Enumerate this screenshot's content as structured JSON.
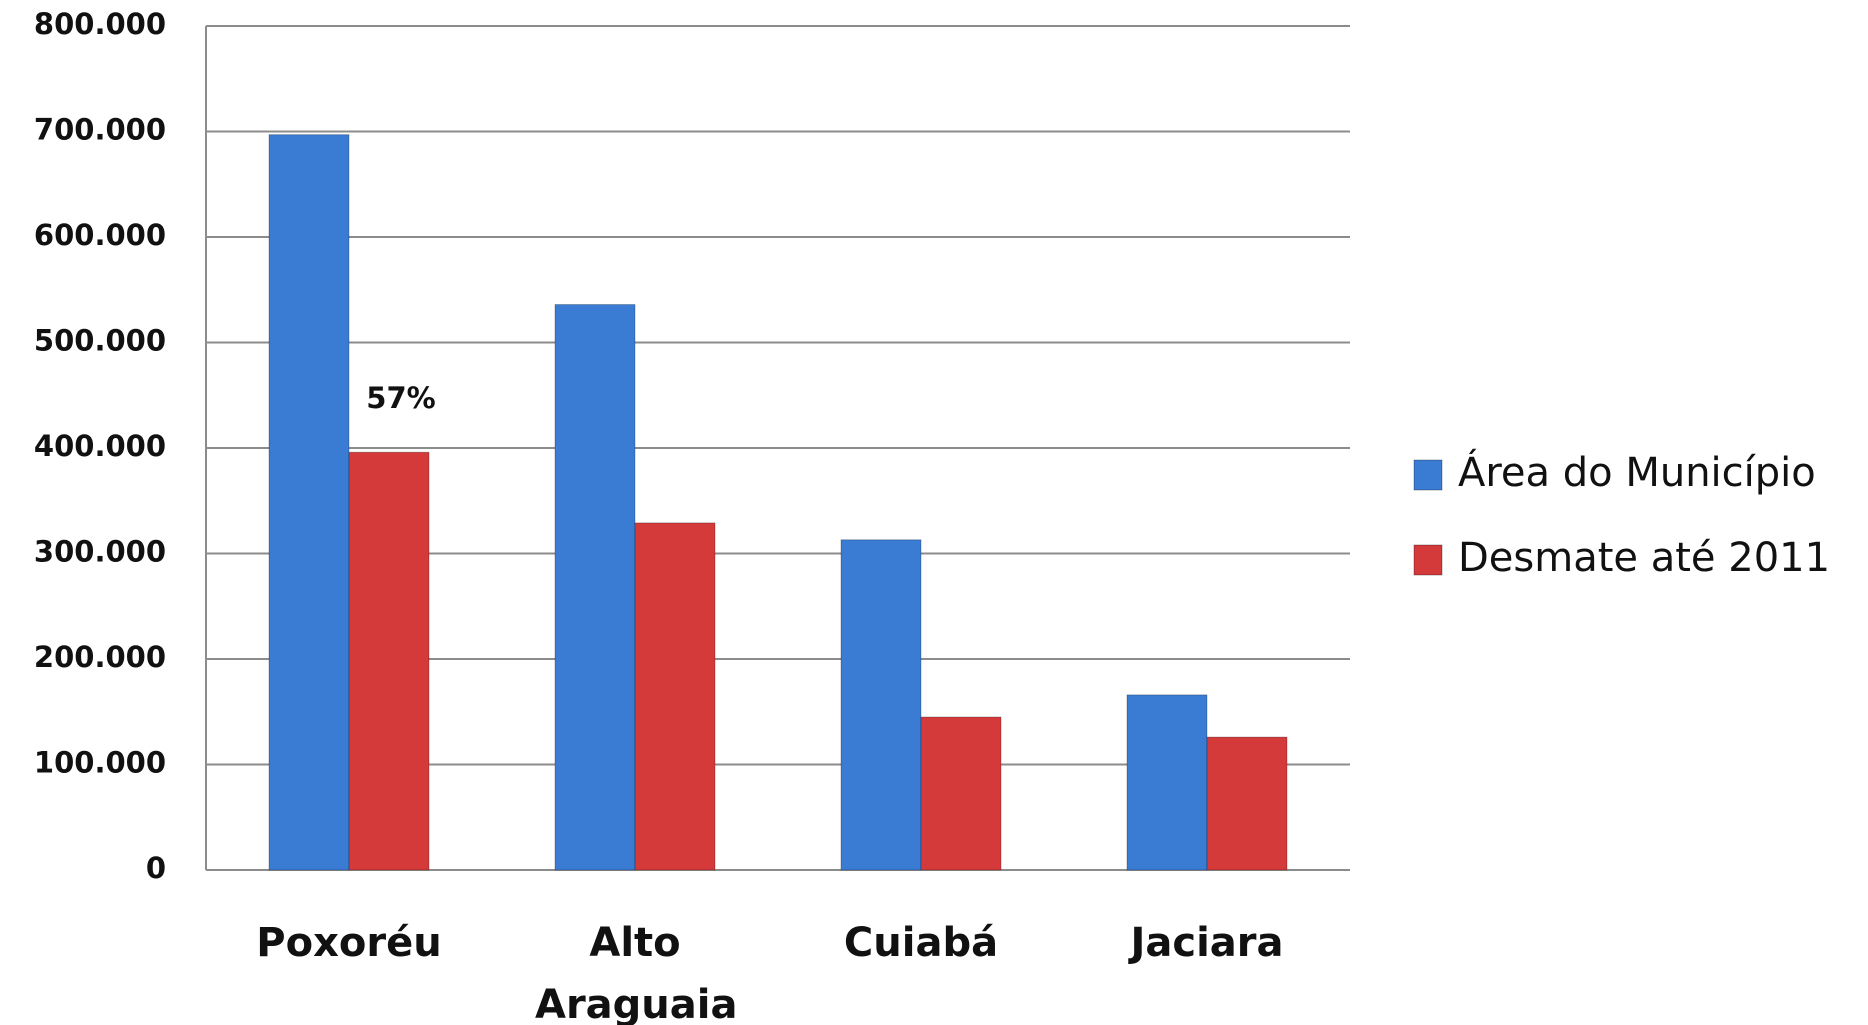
{
  "chart_data": {
    "type": "bar",
    "categories": [
      "Poxoréu",
      "Alto Araguaia",
      "Cuiabá",
      "Jaciara"
    ],
    "series": [
      {
        "name": "Área do Município",
        "color": "#3a7cd4",
        "values": [
          697000,
          536000,
          313000,
          166000
        ]
      },
      {
        "name": "Desmate até 2011",
        "color": "#d43a3a",
        "values": [
          396000,
          329000,
          145000,
          126000
        ]
      }
    ],
    "annotations": [
      {
        "text": "57%",
        "series": 1,
        "category": 0
      }
    ],
    "ylim": [
      0,
      800000
    ],
    "yticks": [
      0,
      {
        "value": 100000,
        "label": "100.000"
      },
      {
        "value": 200000,
        "label": "200.000"
      },
      {
        "value": 300000,
        "label": "300.000"
      },
      {
        "value": 400000,
        "label": "400.000"
      },
      {
        "value": 500000,
        "label": "500.000"
      },
      {
        "value": 600000,
        "label": "600.000"
      },
      {
        "value": 700000,
        "label": "700.000"
      },
      {
        "value": 800000,
        "label": "800.000"
      }
    ],
    "grid": true,
    "legend": "right"
  }
}
